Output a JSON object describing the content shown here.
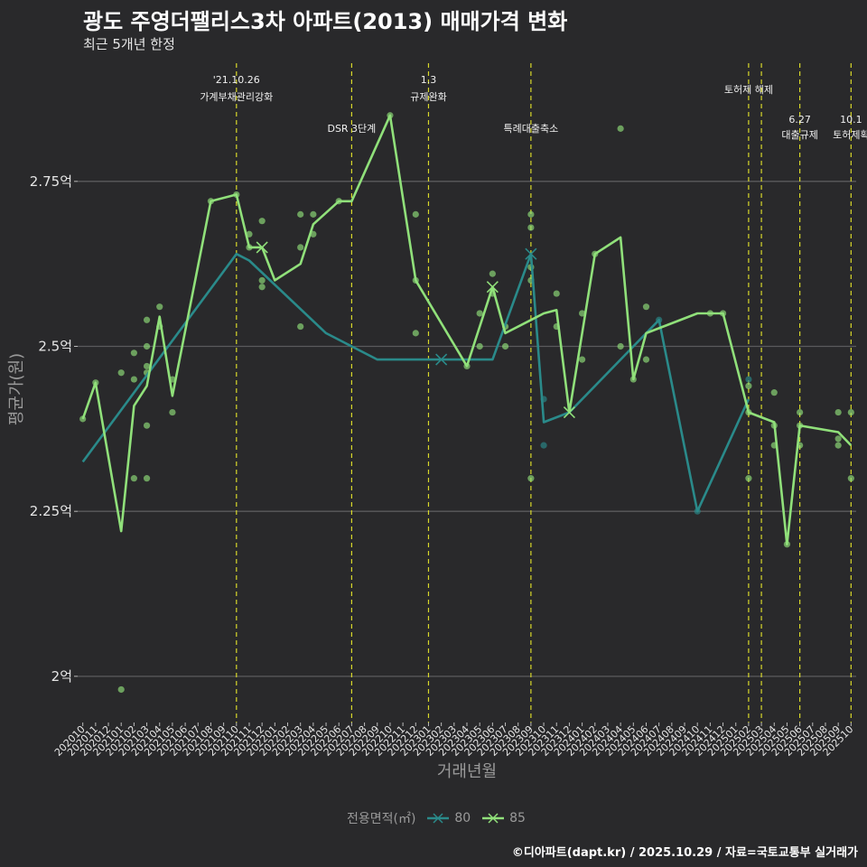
{
  "title": "광도 주영더팰리스3차 아파트(2013) 매매가격 변화",
  "subtitle": "최근 5개년 한정",
  "credit": "©디아파트(dapt.kr) / 2025.10.29 / 자료=국토교통부 실거래가",
  "legend": {
    "title": "전용면적(㎡)",
    "items": [
      {
        "label": "80",
        "color": "#2a8a8a"
      },
      {
        "label": "85",
        "color": "#90e07a"
      }
    ]
  },
  "chart_data": {
    "type": "line",
    "title": "광도 주영더팰리스3차 아파트(2013) 매매가격 변화",
    "xlabel": "거래년월",
    "ylabel": "평균가(원)",
    "ylim": [
      1.93,
      2.94
    ],
    "yticks": [
      {
        "value": 2.0,
        "label": "2억"
      },
      {
        "value": 2.25,
        "label": "2.25억"
      },
      {
        "value": 2.5,
        "label": "2.5억"
      },
      {
        "value": 2.75,
        "label": "2.75억"
      }
    ],
    "categories": [
      "202010",
      "202011",
      "202012",
      "202101",
      "202102",
      "202103",
      "202104",
      "202105",
      "202106",
      "202107",
      "202108",
      "202109",
      "202110",
      "202111",
      "202112",
      "202201",
      "202202",
      "202203",
      "202204",
      "202205",
      "202206",
      "202207",
      "202208",
      "202209",
      "202210",
      "202211",
      "202212",
      "202301",
      "202302",
      "202303",
      "202304",
      "202305",
      "202306",
      "202307",
      "202308",
      "202309",
      "202310",
      "202311",
      "202312",
      "202401",
      "202402",
      "202403",
      "202404",
      "202405",
      "202406",
      "202407",
      "202408",
      "202409",
      "202410",
      "202411",
      "202412",
      "202501",
      "202502",
      "202503",
      "202504",
      "202505",
      "202506",
      "202507",
      "202508",
      "202509",
      "202510"
    ],
    "series": [
      {
        "name": "80",
        "color": "#2a8a8a",
        "points": [
          [
            "202010",
            2.325
          ],
          [
            "202110",
            2.64
          ],
          [
            "202111",
            2.63
          ],
          [
            "202205",
            2.52
          ],
          [
            "202209",
            2.48
          ],
          [
            "202302",
            2.48
          ],
          [
            "202306",
            2.48
          ],
          [
            "202309",
            2.64
          ],
          [
            "202310",
            2.385
          ],
          [
            "202312",
            2.4
          ],
          [
            "202407",
            2.54
          ],
          [
            "202410",
            2.25
          ],
          [
            "202502",
            2.42
          ]
        ],
        "markers": [
          [
            "202302",
            2.48
          ],
          [
            "202309",
            2.64
          ]
        ]
      },
      {
        "name": "85",
        "color": "#90e07a",
        "points": [
          [
            "202010",
            2.39
          ],
          [
            "202011",
            2.445
          ],
          [
            "202101",
            2.22
          ],
          [
            "202102",
            2.41
          ],
          [
            "202103",
            2.44
          ],
          [
            "202104",
            2.545
          ],
          [
            "202105",
            2.425
          ],
          [
            "202108",
            2.72
          ],
          [
            "202110",
            2.73
          ],
          [
            "202111",
            2.65
          ],
          [
            "202112",
            2.65
          ],
          [
            "202201",
            2.6
          ],
          [
            "202203",
            2.625
          ],
          [
            "202204",
            2.685
          ],
          [
            "202206",
            2.72
          ],
          [
            "202207",
            2.72
          ],
          [
            "202210",
            2.85
          ],
          [
            "202212",
            2.6
          ],
          [
            "202304",
            2.47
          ],
          [
            "202305",
            2.53
          ],
          [
            "202306",
            2.59
          ],
          [
            "202307",
            2.52
          ],
          [
            "202309",
            2.54
          ],
          [
            "202310",
            2.55
          ],
          [
            "202311",
            2.555
          ],
          [
            "202312",
            2.4
          ],
          [
            "202402",
            2.64
          ],
          [
            "202404",
            2.665
          ],
          [
            "202405",
            2.45
          ],
          [
            "202406",
            2.52
          ],
          [
            "202410",
            2.55
          ],
          [
            "202412",
            2.55
          ],
          [
            "202502",
            2.4
          ],
          [
            "202504",
            2.385
          ],
          [
            "202505",
            2.2
          ],
          [
            "202506",
            2.38
          ],
          [
            "202509",
            2.37
          ],
          [
            "202510",
            2.35
          ]
        ],
        "markers": [
          [
            "202112",
            2.65
          ],
          [
            "202306",
            2.59
          ],
          [
            "202312",
            2.4
          ]
        ]
      }
    ],
    "scatter": [
      {
        "series": "85",
        "points": [
          [
            "202010",
            2.39
          ],
          [
            "202011",
            2.445
          ],
          [
            "202101",
            1.98
          ],
          [
            "202101",
            2.46
          ],
          [
            "202102",
            2.3
          ],
          [
            "202102",
            2.45
          ],
          [
            "202102",
            2.49
          ],
          [
            "202103",
            2.3
          ],
          [
            "202103",
            2.38
          ],
          [
            "202103",
            2.46
          ],
          [
            "202103",
            2.47
          ],
          [
            "202103",
            2.5
          ],
          [
            "202103",
            2.54
          ],
          [
            "202104",
            2.53
          ],
          [
            "202104",
            2.56
          ],
          [
            "202105",
            2.4
          ],
          [
            "202105",
            2.45
          ],
          [
            "202108",
            2.72
          ],
          [
            "202110",
            2.73
          ],
          [
            "202111",
            2.65
          ],
          [
            "202111",
            2.67
          ],
          [
            "202112",
            2.59
          ],
          [
            "202112",
            2.6
          ],
          [
            "202112",
            2.69
          ],
          [
            "202203",
            2.53
          ],
          [
            "202203",
            2.65
          ],
          [
            "202203",
            2.7
          ],
          [
            "202204",
            2.67
          ],
          [
            "202204",
            2.7
          ],
          [
            "202206",
            2.72
          ],
          [
            "202210",
            2.85
          ],
          [
            "202212",
            2.52
          ],
          [
            "202212",
            2.6
          ],
          [
            "202212",
            2.7
          ],
          [
            "202304",
            2.47
          ],
          [
            "202305",
            2.5
          ],
          [
            "202305",
            2.55
          ],
          [
            "202306",
            2.58
          ],
          [
            "202306",
            2.61
          ],
          [
            "202307",
            2.5
          ],
          [
            "202307",
            2.53
          ],
          [
            "202309",
            2.3
          ],
          [
            "202309",
            2.6
          ],
          [
            "202309",
            2.62
          ],
          [
            "202309",
            2.68
          ],
          [
            "202309",
            2.7
          ],
          [
            "202311",
            2.53
          ],
          [
            "202311",
            2.58
          ],
          [
            "202401",
            2.48
          ],
          [
            "202401",
            2.55
          ],
          [
            "202402",
            2.64
          ],
          [
            "202404",
            2.5
          ],
          [
            "202404",
            2.83
          ],
          [
            "202405",
            2.45
          ],
          [
            "202406",
            2.48
          ],
          [
            "202406",
            2.56
          ],
          [
            "202411",
            2.55
          ],
          [
            "202412",
            2.55
          ],
          [
            "202502",
            2.3
          ],
          [
            "202502",
            2.4
          ],
          [
            "202502",
            2.44
          ],
          [
            "202504",
            2.35
          ],
          [
            "202504",
            2.38
          ],
          [
            "202504",
            2.43
          ],
          [
            "202505",
            2.2
          ],
          [
            "202506",
            2.35
          ],
          [
            "202506",
            2.38
          ],
          [
            "202506",
            2.4
          ],
          [
            "202509",
            2.35
          ],
          [
            "202509",
            2.36
          ],
          [
            "202509",
            2.4
          ],
          [
            "202510",
            2.3
          ],
          [
            "202510",
            2.4
          ]
        ]
      },
      {
        "series": "80",
        "points": [
          [
            "202310",
            2.35
          ],
          [
            "202310",
            2.42
          ],
          [
            "202407",
            2.54
          ],
          [
            "202410",
            2.25
          ],
          [
            "202502",
            2.45
          ]
        ]
      }
    ],
    "events": [
      {
        "month": "202110",
        "label": "'21.10.26\n가계부채관리강화",
        "row": 1
      },
      {
        "month": "202207",
        "label": "DSR 3단계",
        "row": 2
      },
      {
        "month": "202301",
        "label": "1.3\n규제완화",
        "row": 1
      },
      {
        "month": "202309",
        "label": "특례대출축소",
        "row": 2
      },
      {
        "month": "202502",
        "label": "토허제 해제",
        "row": 1
      },
      {
        "month": "202503",
        "label": "",
        "row": 1
      },
      {
        "month": "202506",
        "label": "6.27\n대출규제",
        "row": 3
      },
      {
        "month": "202510",
        "label": "10.1\n토허제확",
        "row": 3
      }
    ]
  }
}
